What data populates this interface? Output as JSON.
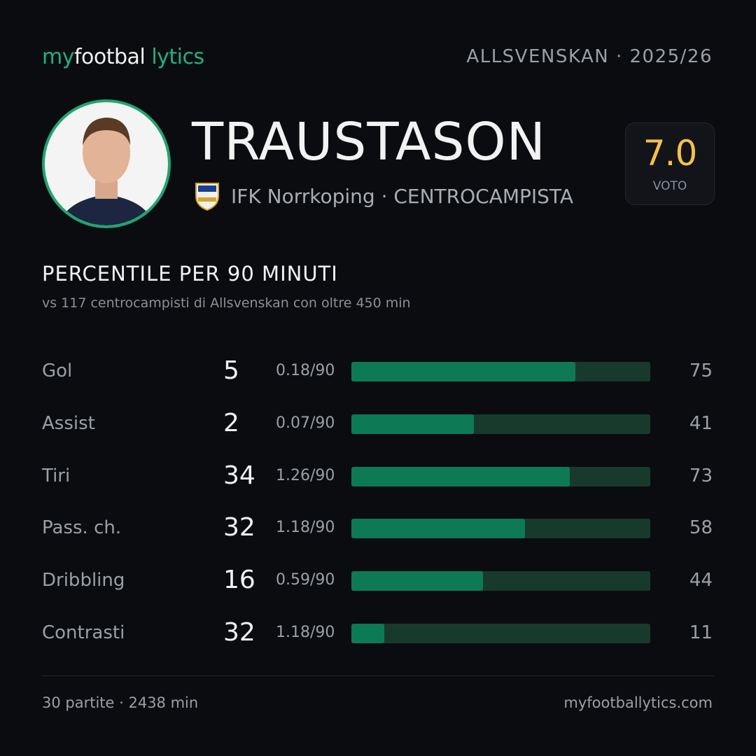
{
  "header": {
    "brand": [
      "my",
      "footbal",
      "lytics"
    ],
    "league": "ALLSVENSKAN",
    "season": "· 2025/26"
  },
  "player": {
    "name": "TRAUSTASON",
    "team": "IFK Norrkoping",
    "role": "· CENTROCAMPISTA",
    "rating": "7.0",
    "rating_label": "VOTO"
  },
  "section": {
    "title": "PERCENTILE  PER 90 MINUTI",
    "subtitle": "vs 117 centrocampisti  di Allsvenskan  con oltre 450 min"
  },
  "rows": [
    {
      "label": "Gol",
      "total": 5,
      "per90": "0.18/90",
      "percentile": 75
    },
    {
      "label": "Assist",
      "total": 2,
      "per90": "0.07/90",
      "percentile": 41
    },
    {
      "label": "Tiri",
      "total": 34,
      "per90": "1.26/90",
      "percentile": 73
    },
    {
      "label": "Pass. ch.",
      "total": 32,
      "per90": "1.18/90",
      "percentile": 58
    },
    {
      "label": "Dribbling",
      "total": 16,
      "per90": "0.59/90",
      "percentile": 44
    },
    {
      "label": "Contrasti",
      "total": 32,
      "per90": "1.18/90",
      "percentile": 11
    }
  ],
  "footer": {
    "stats": "30 partite · 2438 min",
    "site": "myfootballytics.com"
  }
}
